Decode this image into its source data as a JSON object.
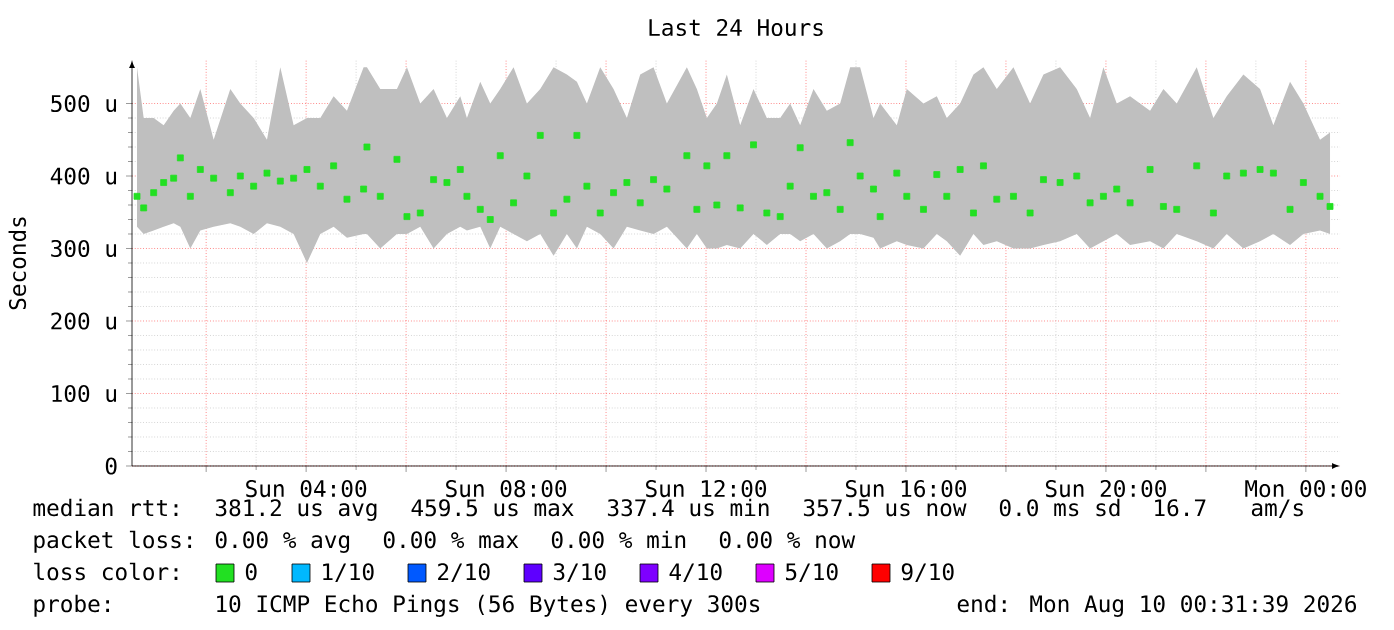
{
  "chart_data": {
    "type": "scatter",
    "title": "Last 24 Hours",
    "ylabel": "Seconds",
    "xlim": [
      "2026-08-09T00:31",
      "2026-08-10T00:41"
    ],
    "ylim": [
      0,
      560
    ],
    "xticks": [
      {
        "value": "2026-08-09T02:00",
        "label": null
      },
      {
        "value": "2026-08-09T04:00",
        "label": "Sun 04:00"
      },
      {
        "value": "2026-08-09T06:00",
        "label": null
      },
      {
        "value": "2026-08-09T08:00",
        "label": "Sun 08:00"
      },
      {
        "value": "2026-08-09T10:00",
        "label": null
      },
      {
        "value": "2026-08-09T12:00",
        "label": "Sun 12:00"
      },
      {
        "value": "2026-08-09T14:00",
        "label": null
      },
      {
        "value": "2026-08-09T16:00",
        "label": "Sun 16:00"
      },
      {
        "value": "2026-08-09T18:00",
        "label": null
      },
      {
        "value": "2026-08-09T20:00",
        "label": "Sun 20:00"
      },
      {
        "value": "2026-08-09T22:00",
        "label": null
      },
      {
        "value": "2026-08-10T00:00",
        "label": "Mon 00:00"
      }
    ],
    "yticks": [
      0,
      {
        "value": 100,
        "label": "100 u"
      },
      {
        "value": 200,
        "label": "200 u"
      },
      {
        "value": 300,
        "label": "300 u"
      },
      {
        "value": 400,
        "label": "400 u"
      },
      {
        "value": 500,
        "label": "500 u"
      }
    ],
    "grid": true,
    "marker": "square",
    "legend": "bottom",
    "legend_title": "loss color:",
    "series": [
      {
        "name": "0",
        "color": "#22e022",
        "x": [
          "2026-08-09T00:37",
          "2026-08-09T00:45",
          "2026-08-09T00:57",
          "2026-08-09T01:09",
          "2026-08-09T01:21",
          "2026-08-09T01:29",
          "2026-08-09T01:41",
          "2026-08-09T01:53",
          "2026-08-09T02:09",
          "2026-08-09T02:29",
          "2026-08-09T02:41",
          "2026-08-09T02:57",
          "2026-08-09T03:13",
          "2026-08-09T03:29",
          "2026-08-09T03:45",
          "2026-08-09T04:01",
          "2026-08-09T04:17",
          "2026-08-09T04:33",
          "2026-08-09T04:49",
          "2026-08-09T05:09",
          "2026-08-09T05:13",
          "2026-08-09T05:29",
          "2026-08-09T05:49",
          "2026-08-09T06:01",
          "2026-08-09T06:17",
          "2026-08-09T06:33",
          "2026-08-09T06:49",
          "2026-08-09T07:05",
          "2026-08-09T07:13",
          "2026-08-09T07:29",
          "2026-08-09T07:41",
          "2026-08-09T07:53",
          "2026-08-09T08:09",
          "2026-08-09T08:25",
          "2026-08-09T08:41",
          "2026-08-09T08:57",
          "2026-08-09T09:13",
          "2026-08-09T09:25",
          "2026-08-09T09:37",
          "2026-08-09T09:53",
          "2026-08-09T10:09",
          "2026-08-09T10:25",
          "2026-08-09T10:41",
          "2026-08-09T10:57",
          "2026-08-09T11:13",
          "2026-08-09T11:37",
          "2026-08-09T11:49",
          "2026-08-09T12:01",
          "2026-08-09T12:13",
          "2026-08-09T12:25",
          "2026-08-09T12:41",
          "2026-08-09T12:57",
          "2026-08-09T13:13",
          "2026-08-09T13:29",
          "2026-08-09T13:41",
          "2026-08-09T13:53",
          "2026-08-09T14:09",
          "2026-08-09T14:25",
          "2026-08-09T14:41",
          "2026-08-09T14:53",
          "2026-08-09T15:05",
          "2026-08-09T15:21",
          "2026-08-09T15:29",
          "2026-08-09T15:49",
          "2026-08-09T16:01",
          "2026-08-09T16:21",
          "2026-08-09T16:37",
          "2026-08-09T16:49",
          "2026-08-09T17:05",
          "2026-08-09T17:21",
          "2026-08-09T17:33",
          "2026-08-09T17:49",
          "2026-08-09T18:09",
          "2026-08-09T18:29",
          "2026-08-09T18:45",
          "2026-08-09T19:05",
          "2026-08-09T19:25",
          "2026-08-09T19:41",
          "2026-08-09T19:57",
          "2026-08-09T20:13",
          "2026-08-09T20:29",
          "2026-08-09T20:53",
          "2026-08-09T21:09",
          "2026-08-09T21:25",
          "2026-08-09T21:49",
          "2026-08-09T22:09",
          "2026-08-09T22:25",
          "2026-08-09T22:45",
          "2026-08-09T23:05",
          "2026-08-09T23:21",
          "2026-08-09T23:41",
          "2026-08-09T23:57",
          "2026-08-10T00:17",
          "2026-08-10T00:29"
        ],
        "values": [
          372,
          356,
          377,
          391,
          397,
          425,
          372,
          409,
          397,
          377,
          400,
          386,
          404,
          393,
          397,
          409,
          386,
          414,
          368,
          382,
          440,
          372,
          423,
          344,
          349,
          395,
          391,
          409,
          372,
          354,
          340,
          428,
          363,
          400,
          456,
          349,
          368,
          456,
          386,
          349,
          377,
          391,
          363,
          395,
          382,
          428,
          354,
          414,
          360,
          428,
          356,
          443,
          349,
          344,
          386,
          439,
          372,
          377,
          354,
          446,
          400,
          382,
          344,
          404,
          372,
          354,
          402,
          372,
          409,
          349,
          414,
          368,
          372,
          349,
          395,
          391,
          400,
          363,
          372,
          382,
          363,
          409,
          358,
          354,
          414,
          349,
          400,
          404,
          409,
          404,
          354,
          391,
          372,
          358
        ],
        "lower": [
          330,
          320,
          325,
          330,
          335,
          330,
          300,
          325,
          330,
          335,
          330,
          320,
          335,
          330,
          320,
          280,
          320,
          330,
          315,
          320,
          320,
          300,
          320,
          320,
          330,
          300,
          320,
          330,
          325,
          330,
          300,
          330,
          320,
          310,
          320,
          290,
          320,
          300,
          330,
          320,
          300,
          330,
          325,
          320,
          330,
          300,
          320,
          300,
          300,
          305,
          300,
          320,
          305,
          320,
          320,
          310,
          320,
          300,
          310,
          320,
          320,
          315,
          300,
          310,
          305,
          300,
          320,
          310,
          290,
          320,
          305,
          310,
          300,
          300,
          305,
          310,
          320,
          300,
          310,
          320,
          305,
          310,
          300,
          320,
          310,
          300,
          320,
          300,
          310,
          320,
          305,
          320,
          325,
          320
        ],
        "upper": [
          550,
          480,
          480,
          470,
          490,
          500,
          480,
          520,
          450,
          520,
          500,
          480,
          450,
          550,
          470,
          480,
          480,
          510,
          490,
          550,
          550,
          520,
          520,
          550,
          500,
          520,
          480,
          510,
          480,
          530,
          500,
          520,
          550,
          500,
          520,
          550,
          540,
          530,
          500,
          550,
          520,
          480,
          540,
          550,
          500,
          550,
          520,
          480,
          500,
          540,
          470,
          520,
          480,
          480,
          500,
          470,
          520,
          490,
          500,
          550,
          550,
          480,
          500,
          470,
          520,
          500,
          510,
          480,
          500,
          540,
          550,
          520,
          550,
          500,
          540,
          550,
          520,
          480,
          550,
          500,
          510,
          490,
          520,
          500,
          550,
          480,
          510,
          540,
          520,
          470,
          530,
          500,
          450,
          460
        ]
      },
      {
        "name": "1/10",
        "color": "#00b8ff"
      },
      {
        "name": "2/10",
        "color": "#0059ff"
      },
      {
        "name": "3/10",
        "color": "#5e00ff"
      },
      {
        "name": "4/10",
        "color": "#7e00ff"
      },
      {
        "name": "5/10",
        "color": "#dd00ff"
      },
      {
        "name": "9/10",
        "color": "#ff0000"
      }
    ],
    "annotations": [
      "median rtt:",
      "381.2 us avg",
      "459.5 us max",
      "337.4 us min",
      "357.5 us now",
      "0.0 ms sd",
      "16.7",
      "am/s",
      "packet loss:",
      "0.00 % avg",
      "0.00 % max",
      "0.00 % min",
      "0.00 % now",
      "probe:",
      "10 ICMP Echo Pings (56 Bytes) every 300s",
      "end: Mon Aug 10 00:31:39 2026"
    ]
  }
}
